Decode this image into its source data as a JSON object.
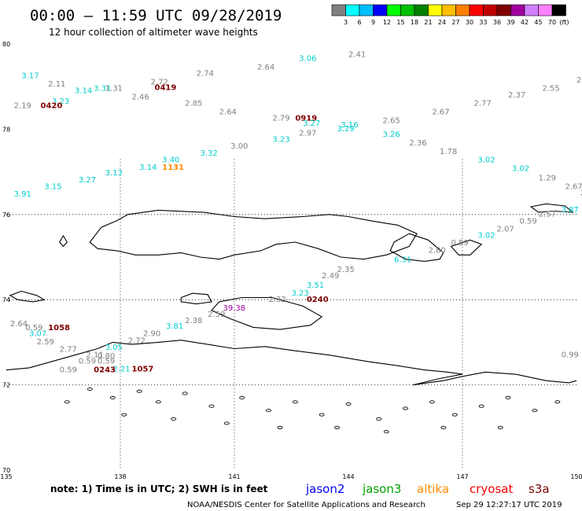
{
  "header": {
    "title": "00:00 – 11:59 UTC 09/28/2019",
    "subtitle": "12 hour collection of altimeter wave heights"
  },
  "colorbar": {
    "unit": "(ft)",
    "labels": [
      "3",
      "6",
      "9",
      "12",
      "15",
      "18",
      "21",
      "24",
      "27",
      "30",
      "33",
      "36",
      "39",
      "42",
      "45",
      "70"
    ],
    "colors": [
      "#808080",
      "#00ffff",
      "#00bfff",
      "#0000ff",
      "#00ff00",
      "#00c000",
      "#008000",
      "#ffff00",
      "#ffbf00",
      "#ff8000",
      "#ff0000",
      "#c00000",
      "#800000",
      "#a000a0",
      "#d080ff",
      "#ff80ff",
      "#000000"
    ]
  },
  "map": {
    "lat_ticks": [
      "80",
      "78",
      "76",
      "74",
      "72",
      "70"
    ],
    "lon_ticks": [
      "135",
      "138",
      "141",
      "144",
      "147",
      "150"
    ],
    "grid_lons": [
      138,
      141,
      147
    ],
    "grid_lats": [
      76,
      74,
      72
    ],
    "extent": {
      "lon_min": 135,
      "lon_max": 150,
      "lat_min": 70,
      "lat_max": 80
    },
    "land_color": "#000000"
  },
  "observations": [
    {
      "text": "3.17",
      "color": "#00cccc",
      "lon": 135.4,
      "lat": 79.2
    },
    {
      "text": "2.11",
      "color": "#808080",
      "lon": 136.1,
      "lat": 79.0
    },
    {
      "text": "3.14",
      "color": "#00cccc",
      "lon": 136.8,
      "lat": 78.85
    },
    {
      "text": "3.31",
      "color": "#00cccc",
      "lon": 137.3,
      "lat": 78.9
    },
    {
      "text": "1.31",
      "color": "#808080",
      "lon": 137.6,
      "lat": 78.9
    },
    {
      "text": "3.23",
      "color": "#00cccc",
      "lon": 136.2,
      "lat": 78.6
    },
    {
      "text": "2.19",
      "color": "#808080",
      "lon": 135.2,
      "lat": 78.5
    },
    {
      "text": "0420",
      "color": "#800000",
      "lon": 135.9,
      "lat": 78.5,
      "bold": true
    },
    {
      "text": "2.72",
      "color": "#808080",
      "lon": 138.8,
      "lat": 79.05
    },
    {
      "text": "0419",
      "color": "#800000",
      "lon": 138.9,
      "lat": 78.92,
      "bold": true
    },
    {
      "text": "2.46",
      "color": "#808080",
      "lon": 138.3,
      "lat": 78.7
    },
    {
      "text": "2.74",
      "color": "#808080",
      "lon": 140.0,
      "lat": 79.25
    },
    {
      "text": "2.85",
      "color": "#808080",
      "lon": 139.7,
      "lat": 78.55
    },
    {
      "text": "2.64",
      "color": "#808080",
      "lon": 141.6,
      "lat": 79.4
    },
    {
      "text": "3.06",
      "color": "#00cccc",
      "lon": 142.7,
      "lat": 79.6
    },
    {
      "text": "2.41",
      "color": "#808080",
      "lon": 144.0,
      "lat": 79.7
    },
    {
      "text": "2.64",
      "color": "#808080",
      "lon": 140.6,
      "lat": 78.35
    },
    {
      "text": "2.79",
      "color": "#808080",
      "lon": 142.0,
      "lat": 78.2
    },
    {
      "text": "0919",
      "color": "#800000",
      "lon": 142.6,
      "lat": 78.2,
      "bold": true
    },
    {
      "text": "3.27",
      "color": "#00cccc",
      "lon": 142.8,
      "lat": 78.08
    },
    {
      "text": "3.16",
      "color": "#00cccc",
      "lon": 143.8,
      "lat": 78.04
    },
    {
      "text": "3.29",
      "color": "#00cccc",
      "lon": 143.7,
      "lat": 77.95
    },
    {
      "text": "2.97",
      "color": "#808080",
      "lon": 142.7,
      "lat": 77.85
    },
    {
      "text": "3.23",
      "color": "#00cccc",
      "lon": 142.0,
      "lat": 77.7
    },
    {
      "text": "2.65",
      "color": "#808080",
      "lon": 144.9,
      "lat": 78.15
    },
    {
      "text": "3.26",
      "color": "#00cccc",
      "lon": 144.9,
      "lat": 77.82
    },
    {
      "text": "2.67",
      "color": "#808080",
      "lon": 146.2,
      "lat": 78.35
    },
    {
      "text": "2.77",
      "color": "#808080",
      "lon": 147.3,
      "lat": 78.55
    },
    {
      "text": "2.37",
      "color": "#808080",
      "lon": 148.2,
      "lat": 78.75
    },
    {
      "text": "2.55",
      "color": "#808080",
      "lon": 149.1,
      "lat": 78.9
    },
    {
      "text": "2.32",
      "color": "#808080",
      "lon": 150.0,
      "lat": 79.1
    },
    {
      "text": "2.36",
      "color": "#808080",
      "lon": 145.6,
      "lat": 77.62
    },
    {
      "text": "1.78",
      "color": "#808080",
      "lon": 146.4,
      "lat": 77.42
    },
    {
      "text": "3.02",
      "color": "#00cccc",
      "lon": 147.4,
      "lat": 77.22
    },
    {
      "text": "3.02",
      "color": "#00cccc",
      "lon": 148.3,
      "lat": 77.02
    },
    {
      "text": "1.29",
      "color": "#808080",
      "lon": 149.0,
      "lat": 76.8
    },
    {
      "text": "2.67",
      "color": "#808080",
      "lon": 149.7,
      "lat": 76.6
    },
    {
      "text": "2.73",
      "color": "#808080",
      "lon": 150.1,
      "lat": 76.45
    },
    {
      "text": "3",
      "color": "#00cccc",
      "lon": 150.2,
      "lat": 76.2
    },
    {
      "text": "3.87",
      "color": "#00cccc",
      "lon": 149.6,
      "lat": 76.05
    },
    {
      "text": "2.57",
      "color": "#808080",
      "lon": 149.0,
      "lat": 75.95
    },
    {
      "text": "0.59",
      "color": "#808080",
      "lon": 148.5,
      "lat": 75.78
    },
    {
      "text": "2.07",
      "color": "#808080",
      "lon": 147.9,
      "lat": 75.6
    },
    {
      "text": "3.02",
      "color": "#00cccc",
      "lon": 147.4,
      "lat": 75.45
    },
    {
      "text": "0.59",
      "color": "#808080",
      "lon": 146.7,
      "lat": 75.28
    },
    {
      "text": "2.80",
      "color": "#808080",
      "lon": 146.1,
      "lat": 75.1
    },
    {
      "text": "6.31",
      "color": "#00cccc",
      "lon": 145.2,
      "lat": 74.88
    },
    {
      "text": "3.00",
      "color": "#808080",
      "lon": 140.9,
      "lat": 77.55
    },
    {
      "text": "3.32",
      "color": "#00cccc",
      "lon": 140.1,
      "lat": 77.38
    },
    {
      "text": "3.40",
      "color": "#00cccc",
      "lon": 139.1,
      "lat": 77.22
    },
    {
      "text": "3.14",
      "color": "#00cccc",
      "lon": 138.5,
      "lat": 77.05
    },
    {
      "text": "1131",
      "color": "#ff8c00",
      "lon": 139.1,
      "lat": 77.05,
      "bold": true
    },
    {
      "text": "3.13",
      "color": "#00cccc",
      "lon": 137.6,
      "lat": 76.92
    },
    {
      "text": "3.27",
      "color": "#00cccc",
      "lon": 136.9,
      "lat": 76.75
    },
    {
      "text": "3.15",
      "color": "#00cccc",
      "lon": 136.0,
      "lat": 76.6
    },
    {
      "text": "3.91",
      "color": "#00cccc",
      "lon": 135.2,
      "lat": 76.42
    },
    {
      "text": "2.35",
      "color": "#808080",
      "lon": 143.7,
      "lat": 74.65
    },
    {
      "text": "2.49",
      "color": "#808080",
      "lon": 143.3,
      "lat": 74.5
    },
    {
      "text": "3.51",
      "color": "#00cccc",
      "lon": 142.9,
      "lat": 74.28
    },
    {
      "text": "3.23",
      "color": "#00cccc",
      "lon": 142.5,
      "lat": 74.1
    },
    {
      "text": "2.32",
      "color": "#808080",
      "lon": 141.9,
      "lat": 73.95
    },
    {
      "text": "0240",
      "color": "#800000",
      "lon": 142.9,
      "lat": 73.95,
      "bold": true
    },
    {
      "text": "39.38",
      "color": "#a000a0",
      "lon": 140.7,
      "lat": 73.75
    },
    {
      "text": "2.59",
      "color": "#808080",
      "lon": 140.3,
      "lat": 73.6
    },
    {
      "text": "2.38",
      "color": "#808080",
      "lon": 139.7,
      "lat": 73.45
    },
    {
      "text": "3.81",
      "color": "#00cccc",
      "lon": 139.2,
      "lat": 73.32
    },
    {
      "text": "2.90",
      "color": "#808080",
      "lon": 138.6,
      "lat": 73.15
    },
    {
      "text": "2.72",
      "color": "#808080",
      "lon": 138.2,
      "lat": 72.98
    },
    {
      "text": "3.05",
      "color": "#00cccc",
      "lon": 137.6,
      "lat": 72.82
    },
    {
      "text": "2.11",
      "color": "#808080",
      "lon": 137.1,
      "lat": 72.65
    },
    {
      "text": "0.80",
      "color": "#808080",
      "lon": 137.4,
      "lat": 72.62
    },
    {
      "text": "0.59",
      "color": "#808080",
      "lon": 136.9,
      "lat": 72.5
    },
    {
      "text": "0.59",
      "color": "#808080",
      "lon": 137.4,
      "lat": 72.5
    },
    {
      "text": "2.21",
      "color": "#00cccc",
      "lon": 137.8,
      "lat": 72.32
    },
    {
      "text": "0.59",
      "color": "#808080",
      "lon": 136.4,
      "lat": 72.3
    },
    {
      "text": "0243",
      "color": "#800000",
      "lon": 137.3,
      "lat": 72.3,
      "bold": true
    },
    {
      "text": "1057",
      "color": "#800000",
      "lon": 138.3,
      "lat": 72.32,
      "bold": true
    },
    {
      "text": "2.77",
      "color": "#808080",
      "lon": 136.4,
      "lat": 72.78
    },
    {
      "text": "2.59",
      "color": "#808080",
      "lon": 135.8,
      "lat": 72.95
    },
    {
      "text": "3.07",
      "color": "#00cccc",
      "lon": 135.6,
      "lat": 73.15
    },
    {
      "text": "0.59",
      "color": "#808080",
      "lon": 135.5,
      "lat": 73.28
    },
    {
      "text": "1058",
      "color": "#800000",
      "lon": 136.1,
      "lat": 73.28,
      "bold": true
    },
    {
      "text": "2.64",
      "color": "#808080",
      "lon": 135.1,
      "lat": 73.38
    },
    {
      "text": "0.99",
      "color": "#808080",
      "lon": 149.6,
      "lat": 72.65
    },
    {
      "text": "1.85",
      "color": "#808080",
      "lon": 150.2,
      "lat": 72.88
    }
  ],
  "note": {
    "text": "note:  1) Time is in UTC; 2) SWH is in feet",
    "satellites": [
      {
        "name": "jason2",
        "color": "#0000ff"
      },
      {
        "name": "jason3",
        "color": "#00a000"
      },
      {
        "name": "altika",
        "color": "#ff8c00"
      },
      {
        "name": "cryosat",
        "color": "#ff0000"
      },
      {
        "name": "s3a",
        "color": "#800000"
      }
    ]
  },
  "footer": {
    "source": "NOAA/NESDIS Center for Satellite Applications and Research",
    "timestamp": "Sep 29 12:27:17 UTC 2019"
  }
}
